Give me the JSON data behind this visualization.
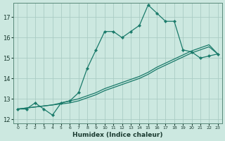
{
  "xlabel": "Humidex (Indice chaleur)",
  "background_color": "#cce8e0",
  "grid_color": "#aaccC4",
  "line_color": "#1a7a6a",
  "xlim": [
    -0.5,
    23.5
  ],
  "ylim": [
    11.8,
    17.7
  ],
  "yticks": [
    12,
    13,
    14,
    15,
    16,
    17
  ],
  "xticks": [
    0,
    1,
    2,
    3,
    4,
    5,
    6,
    7,
    8,
    9,
    10,
    11,
    12,
    13,
    14,
    15,
    16,
    17,
    18,
    19,
    20,
    21,
    22,
    23
  ],
  "line1_x": [
    0,
    1,
    2,
    3,
    4,
    5,
    6,
    7,
    8,
    9,
    10,
    11,
    12,
    13,
    14,
    15,
    16,
    17,
    18,
    19,
    20,
    21,
    22,
    23
  ],
  "line1_y": [
    12.5,
    12.5,
    12.8,
    12.5,
    12.2,
    12.8,
    12.9,
    13.3,
    14.5,
    15.4,
    16.3,
    16.3,
    16.0,
    16.3,
    16.6,
    17.6,
    17.2,
    16.8,
    16.8,
    15.4,
    15.3,
    15.0,
    15.1,
    15.2
  ],
  "line2_x": [
    0,
    1,
    2,
    3,
    4,
    5,
    6,
    7,
    8,
    9,
    10,
    11,
    12,
    13,
    14,
    15,
    16,
    17,
    18,
    19,
    20,
    21,
    22,
    23
  ],
  "line2_y": [
    12.5,
    12.55,
    12.6,
    12.65,
    12.7,
    12.75,
    12.8,
    12.9,
    13.05,
    13.2,
    13.4,
    13.55,
    13.7,
    13.85,
    14.0,
    14.2,
    14.45,
    14.65,
    14.85,
    15.05,
    15.25,
    15.4,
    15.55,
    15.2
  ],
  "line3_x": [
    0,
    1,
    2,
    3,
    4,
    5,
    6,
    7,
    8,
    9,
    10,
    11,
    12,
    13,
    14,
    15,
    16,
    17,
    18,
    19,
    20,
    21,
    22,
    23
  ],
  "line3_y": [
    12.5,
    12.55,
    12.6,
    12.65,
    12.7,
    12.8,
    12.9,
    13.0,
    13.15,
    13.3,
    13.5,
    13.65,
    13.8,
    13.95,
    14.1,
    14.3,
    14.55,
    14.75,
    14.95,
    15.15,
    15.35,
    15.5,
    15.65,
    15.2
  ]
}
